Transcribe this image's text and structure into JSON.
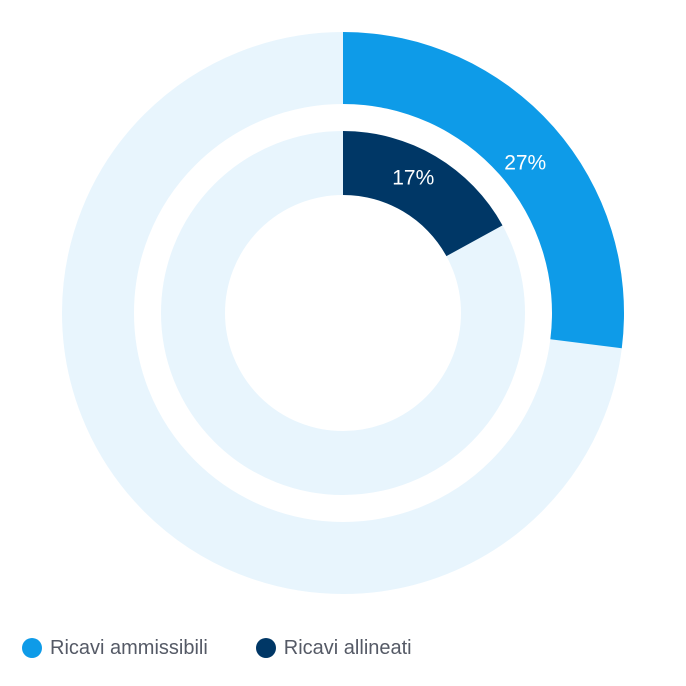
{
  "chart_data": {
    "type": "pie",
    "variant": "nested-donut",
    "series": [
      {
        "name": "Ricavi ammissibili",
        "value": 27,
        "label": "27%",
        "color": "#0e9be8",
        "remainder_color": "#e8f5fd"
      },
      {
        "name": "Ricavi allineati",
        "value": 17,
        "label": "17%",
        "color": "#003766",
        "remainder_color": "#e8f5fd"
      }
    ],
    "unit": "%",
    "total": 100,
    "legend_position": "bottom-left"
  }
}
